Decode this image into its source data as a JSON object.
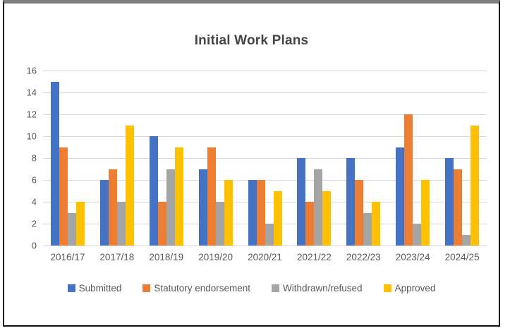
{
  "chart_data": {
    "type": "bar",
    "title": "Initial Work Plans",
    "categories": [
      "2016/17",
      "2017/18",
      "2018/19",
      "2019/20",
      "2020/21",
      "2021/22",
      "2022/23",
      "2023/24",
      "2024/25"
    ],
    "series": [
      {
        "name": "Submitted",
        "color": "#4472C4",
        "values": [
          15,
          6,
          10,
          7,
          6,
          8,
          8,
          9,
          8
        ]
      },
      {
        "name": "Statutory endorsement",
        "color": "#ED7D31",
        "values": [
          9,
          7,
          4,
          9,
          6,
          4,
          6,
          12,
          7
        ]
      },
      {
        "name": "Withdrawn/refused",
        "color": "#A5A5A5",
        "values": [
          3,
          4,
          7,
          4,
          2,
          7,
          3,
          2,
          1
        ]
      },
      {
        "name": "Approved",
        "color": "#FFC000",
        "values": [
          4,
          11,
          9,
          6,
          5,
          5,
          4,
          6,
          11
        ]
      }
    ],
    "xlabel": "",
    "ylabel": "",
    "ylim": [
      0,
      16
    ],
    "ytick_step": 2,
    "grid": true,
    "legend_position": "bottom"
  },
  "colors": {
    "gridline": "#d9d9d9",
    "axis_text": "#595959",
    "title_text": "#464646",
    "frame_border": "#111111",
    "frame_top_bar": "#7f7f7f",
    "background": "#ffffff"
  }
}
